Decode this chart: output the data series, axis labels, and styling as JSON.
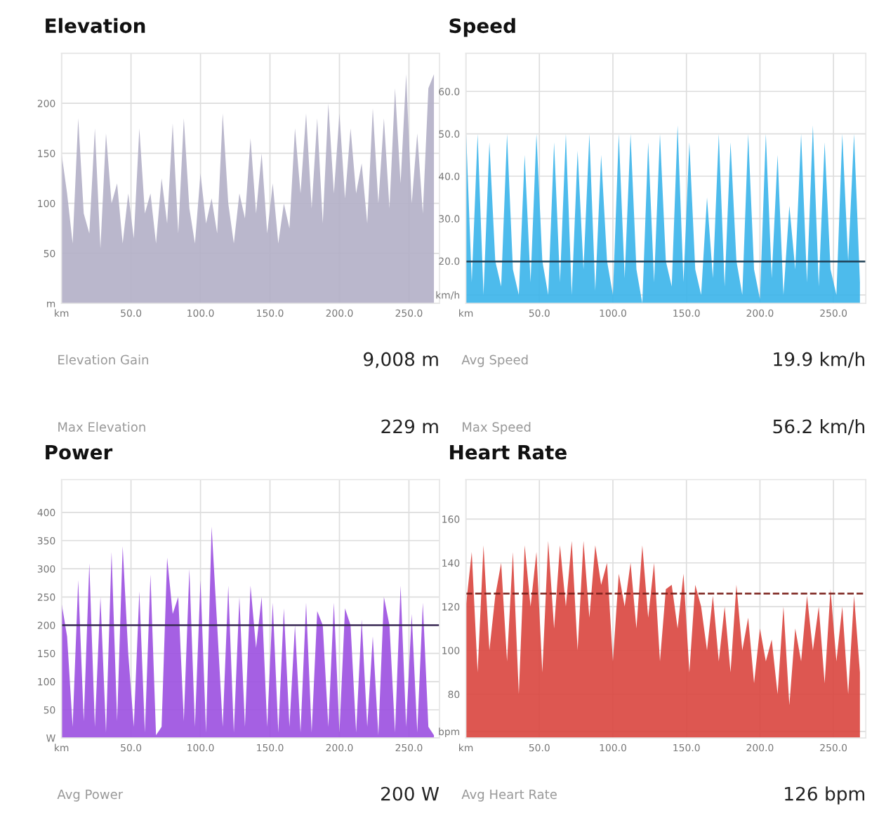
{
  "chart_data": [
    {
      "type": "area",
      "title": "Elevation",
      "color": "#b3afc6",
      "grid": true,
      "x": [
        0,
        4,
        8,
        12,
        16,
        20,
        24,
        28,
        32,
        36,
        40,
        44,
        48,
        52,
        56,
        60,
        64,
        68,
        72,
        76,
        80,
        84,
        88,
        92,
        96,
        100,
        104,
        108,
        112,
        116,
        120,
        124,
        128,
        132,
        136,
        140,
        144,
        148,
        152,
        156,
        160,
        164,
        168,
        172,
        176,
        180,
        184,
        188,
        192,
        196,
        200,
        204,
        208,
        212,
        216,
        220,
        224,
        228,
        232,
        236,
        240,
        244,
        248,
        252,
        256,
        260,
        264,
        268
      ],
      "values": [
        150,
        110,
        60,
        185,
        90,
        70,
        175,
        55,
        170,
        100,
        120,
        60,
        110,
        65,
        175,
        90,
        110,
        60,
        125,
        80,
        180,
        70,
        185,
        95,
        60,
        130,
        80,
        105,
        70,
        190,
        100,
        60,
        110,
        85,
        165,
        90,
        150,
        70,
        120,
        60,
        100,
        75,
        175,
        110,
        190,
        95,
        185,
        80,
        200,
        110,
        190,
        105,
        175,
        110,
        140,
        80,
        195,
        100,
        185,
        95,
        215,
        120,
        229,
        100,
        170,
        90,
        215,
        229
      ],
      "xlim": [
        0,
        272
      ],
      "xticks": [
        {
          "value": 0,
          "label": "km"
        },
        {
          "value": 50,
          "label": "50.0"
        },
        {
          "value": 100,
          "label": "100.0"
        },
        {
          "value": 150,
          "label": "150.0"
        },
        {
          "value": 200,
          "label": "200.0"
        },
        {
          "value": 250,
          "label": "250.0"
        }
      ],
      "ylim": [
        0,
        250
      ],
      "yticks": [
        {
          "value": 0,
          "label": "m"
        },
        50,
        100,
        150,
        200
      ],
      "annotations": [
        "Elevation Gain",
        "9,008 m",
        "Max Elevation",
        "229 m"
      ]
    },
    {
      "type": "area",
      "title": "Speed",
      "color": "#3ab4ea",
      "grid": true,
      "x": [
        0,
        4,
        8,
        12,
        16,
        20,
        24,
        28,
        32,
        36,
        40,
        44,
        48,
        52,
        56,
        60,
        64,
        68,
        72,
        76,
        80,
        84,
        88,
        92,
        96,
        100,
        104,
        108,
        112,
        116,
        120,
        124,
        128,
        132,
        136,
        140,
        144,
        148,
        152,
        156,
        160,
        164,
        168,
        172,
        176,
        180,
        184,
        188,
        192,
        196,
        200,
        204,
        208,
        212,
        216,
        220,
        224,
        228,
        232,
        236,
        240,
        244,
        248,
        252,
        256,
        260,
        264,
        268
      ],
      "values": [
        52,
        15,
        50,
        12,
        48,
        20,
        14,
        50,
        18,
        12,
        45,
        15,
        50,
        20,
        12,
        48,
        15,
        50,
        12,
        46,
        18,
        50,
        13,
        45,
        20,
        12,
        50,
        16,
        50,
        18,
        10,
        48,
        15,
        50,
        20,
        14,
        52,
        15,
        48,
        18,
        12,
        35,
        16,
        50,
        14,
        48,
        20,
        12,
        50,
        18,
        11,
        50,
        16,
        45,
        12,
        33,
        18,
        50,
        15,
        52,
        14,
        48,
        18,
        12,
        50,
        20,
        50,
        15
      ],
      "xlim": [
        0,
        272
      ],
      "xticks": [
        {
          "value": 0,
          "label": "km"
        },
        {
          "value": 50,
          "label": "50.0"
        },
        {
          "value": 100,
          "label": "100.0"
        },
        {
          "value": 150,
          "label": "150.0"
        },
        {
          "value": 200,
          "label": "200.0"
        },
        {
          "value": 250,
          "label": "250.0"
        }
      ],
      "ylim": [
        10,
        69
      ],
      "yticks": [
        {
          "value": 12,
          "label": "km/h"
        },
        {
          "value": 20,
          "label": "20.0"
        },
        {
          "value": 30,
          "label": "30.0"
        },
        {
          "value": 40,
          "label": "40.0"
        },
        {
          "value": 50,
          "label": "50.0"
        },
        {
          "value": 60,
          "label": "60.0"
        }
      ],
      "ref_lines": [
        {
          "axis": "y",
          "value": 19.9,
          "color": "#1f3f55",
          "line_style": "solid"
        }
      ],
      "annotations": [
        "Avg Speed",
        "19.9 km/h",
        "Max Speed",
        "56.2 km/h"
      ]
    },
    {
      "type": "area",
      "title": "Power",
      "color": "#9b4fe0",
      "grid": true,
      "x": [
        0,
        4,
        8,
        12,
        16,
        20,
        24,
        28,
        32,
        36,
        40,
        44,
        48,
        52,
        56,
        60,
        64,
        68,
        72,
        76,
        80,
        84,
        88,
        92,
        96,
        100,
        104,
        108,
        112,
        116,
        120,
        124,
        128,
        132,
        136,
        140,
        144,
        148,
        152,
        156,
        160,
        164,
        168,
        172,
        176,
        180,
        184,
        188,
        192,
        196,
        200,
        204,
        208,
        212,
        216,
        220,
        224,
        228,
        232,
        236,
        240,
        244,
        248,
        252,
        256,
        260,
        264,
        268
      ],
      "values": [
        240,
        180,
        20,
        280,
        30,
        310,
        20,
        250,
        10,
        330,
        30,
        340,
        150,
        20,
        260,
        10,
        290,
        5,
        20,
        320,
        220,
        250,
        30,
        300,
        20,
        280,
        10,
        375,
        200,
        20,
        270,
        10,
        250,
        20,
        270,
        160,
        250,
        20,
        240,
        10,
        230,
        20,
        200,
        10,
        240,
        10,
        225,
        200,
        20,
        240,
        10,
        230,
        200,
        10,
        210,
        20,
        180,
        5,
        250,
        200,
        10,
        270,
        20,
        220,
        10,
        240,
        20,
        5
      ],
      "xlim": [
        0,
        272
      ],
      "xticks": [
        {
          "value": 0,
          "label": "km"
        },
        {
          "value": 50,
          "label": "50.0"
        },
        {
          "value": 100,
          "label": "100.0"
        },
        {
          "value": 150,
          "label": "150.0"
        },
        {
          "value": 200,
          "label": "200.0"
        },
        {
          "value": 250,
          "label": "250.0"
        }
      ],
      "ylim": [
        0,
        458
      ],
      "yticks": [
        {
          "value": 0,
          "label": "W"
        },
        50,
        100,
        150,
        200,
        250,
        300,
        350,
        400
      ],
      "ref_lines": [
        {
          "axis": "y",
          "value": 200,
          "color": "#3a2a55",
          "line_style": "solid"
        }
      ],
      "annotations": [
        "Avg Power",
        "200 W"
      ]
    },
    {
      "type": "area",
      "title": "Heart Rate",
      "color": "#d9453e",
      "grid": true,
      "x": [
        0,
        4,
        8,
        12,
        16,
        20,
        24,
        28,
        32,
        36,
        40,
        44,
        48,
        52,
        56,
        60,
        64,
        68,
        72,
        76,
        80,
        84,
        88,
        92,
        96,
        100,
        104,
        108,
        112,
        116,
        120,
        124,
        128,
        132,
        136,
        140,
        144,
        148,
        152,
        156,
        160,
        164,
        168,
        172,
        176,
        180,
        184,
        188,
        192,
        196,
        200,
        204,
        208,
        212,
        216,
        220,
        224,
        228,
        232,
        236,
        240,
        244,
        248,
        252,
        256,
        260,
        264,
        268
      ],
      "values": [
        120,
        145,
        90,
        148,
        100,
        125,
        140,
        95,
        145,
        80,
        148,
        120,
        145,
        90,
        150,
        110,
        148,
        120,
        150,
        100,
        150,
        115,
        148,
        130,
        140,
        95,
        135,
        120,
        140,
        110,
        148,
        115,
        140,
        95,
        128,
        130,
        110,
        135,
        90,
        130,
        120,
        100,
        125,
        95,
        120,
        90,
        130,
        100,
        115,
        85,
        110,
        95,
        105,
        80,
        120,
        75,
        110,
        95,
        125,
        100,
        120,
        85,
        128,
        95,
        120,
        80,
        125,
        90
      ],
      "xlim": [
        0,
        272
      ],
      "xticks": [
        {
          "value": 0,
          "label": "km"
        },
        {
          "value": 50,
          "label": "50.0"
        },
        {
          "value": 100,
          "label": "100.0"
        },
        {
          "value": 150,
          "label": "150.0"
        },
        {
          "value": 200,
          "label": "200.0"
        },
        {
          "value": 250,
          "label": "250.0"
        }
      ],
      "ylim": [
        60,
        178
      ],
      "yticks": [
        {
          "value": 63,
          "label": "bpm"
        },
        80,
        100,
        120,
        140,
        160
      ],
      "ref_lines": [
        {
          "axis": "y",
          "value": 126,
          "color": "#7a1f1a",
          "line_style": "dashed"
        }
      ],
      "annotations": [
        "Avg Heart Rate",
        "126 bpm"
      ]
    }
  ]
}
